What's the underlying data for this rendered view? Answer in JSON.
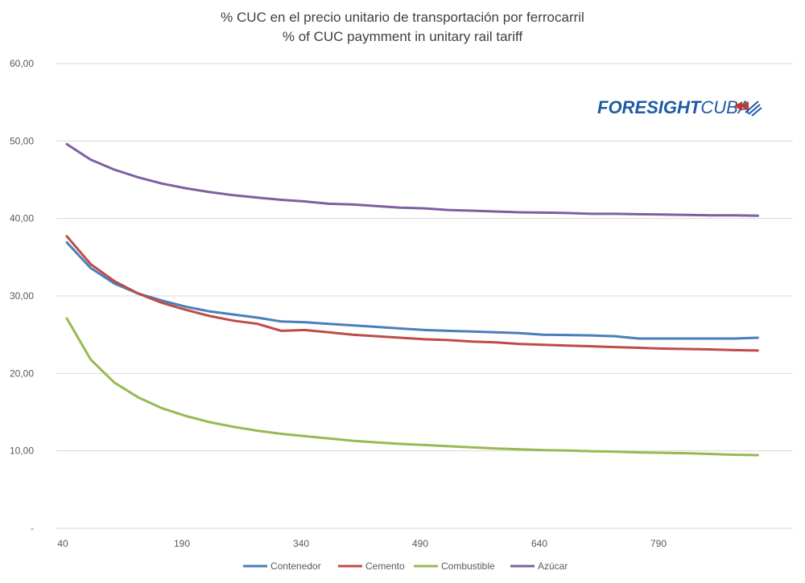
{
  "chart_data": {
    "type": "line",
    "title": "% CUC en el precio unitario de transportación por ferrocarril",
    "subtitle": "% of CUC paymment in unitary rail tariff",
    "logo_text": {
      "part1": "FORESIGHT",
      "part2": "CUBA"
    },
    "x": [
      40,
      70,
      100,
      130,
      160,
      190,
      220,
      250,
      280,
      310,
      340,
      370,
      400,
      430,
      460,
      490,
      520,
      550,
      580,
      610,
      640,
      670,
      700,
      730,
      760,
      790,
      820,
      850,
      880,
      910
    ],
    "xticks": [
      40,
      190,
      340,
      490,
      640,
      790
    ],
    "xtick_labels": [
      "40",
      "190",
      "340",
      "490",
      "640",
      "790"
    ],
    "yticks": [
      0,
      10,
      20,
      30,
      40,
      50,
      60
    ],
    "ytick_labels": [
      "-",
      "10,00",
      "20,00",
      "30,00",
      "40,00",
      "50,00",
      "60,00"
    ],
    "ylim": [
      0,
      60
    ],
    "grid": true,
    "legend_position": "bottom",
    "series": [
      {
        "name": "Contenedor",
        "color": "#4a7ebb",
        "values": [
          36.9,
          33.6,
          31.6,
          30.3,
          29.4,
          28.6,
          28.0,
          27.6,
          27.2,
          26.7,
          26.6,
          26.4,
          26.2,
          26.0,
          25.8,
          25.6,
          25.5,
          25.4,
          25.3,
          25.2,
          25.0,
          24.95,
          24.9,
          24.8,
          24.5,
          24.5,
          24.5,
          24.5,
          24.5,
          24.6
        ]
      },
      {
        "name": "Cemento",
        "color": "#be4b48",
        "values": [
          37.7,
          34.1,
          31.9,
          30.3,
          29.1,
          28.2,
          27.4,
          26.8,
          26.4,
          25.5,
          25.6,
          25.3,
          25.0,
          24.8,
          24.6,
          24.4,
          24.3,
          24.1,
          24.0,
          23.8,
          23.7,
          23.6,
          23.5,
          23.4,
          23.3,
          23.2,
          23.15,
          23.1,
          23.0,
          22.95
        ]
      },
      {
        "name": "Combustible",
        "color": "#98b954",
        "values": [
          27.1,
          21.8,
          18.8,
          16.9,
          15.5,
          14.5,
          13.7,
          13.1,
          12.6,
          12.2,
          11.9,
          11.6,
          11.3,
          11.1,
          10.9,
          10.75,
          10.6,
          10.45,
          10.3,
          10.2,
          10.1,
          10.05,
          9.95,
          9.9,
          9.8,
          9.75,
          9.7,
          9.6,
          9.5,
          9.45
        ]
      },
      {
        "name": "Azúcar",
        "color": "#7d60a0",
        "values": [
          49.6,
          47.6,
          46.3,
          45.3,
          44.5,
          43.9,
          43.4,
          43.0,
          42.7,
          42.4,
          42.2,
          41.9,
          41.8,
          41.6,
          41.4,
          41.3,
          41.1,
          41.0,
          40.9,
          40.8,
          40.75,
          40.7,
          40.6,
          40.6,
          40.55,
          40.5,
          40.45,
          40.4,
          40.4,
          40.35
        ]
      }
    ]
  }
}
